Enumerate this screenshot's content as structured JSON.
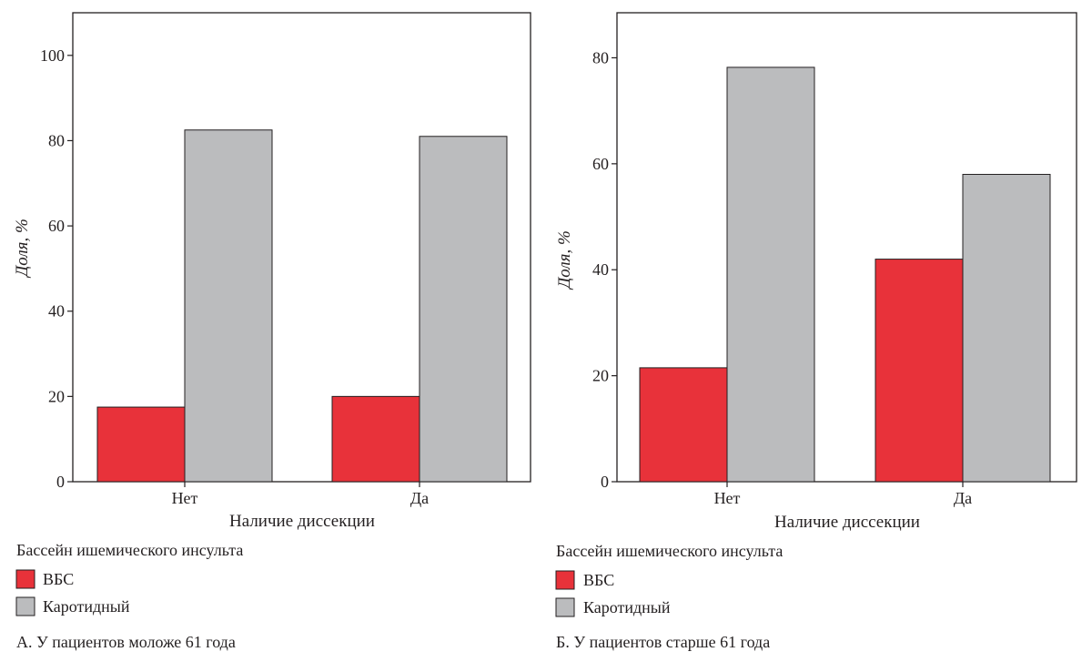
{
  "chart_data": [
    {
      "type": "bar",
      "categories": [
        "Нет",
        "Да"
      ],
      "series": [
        {
          "name": "ВБС",
          "values": [
            17.5,
            20.0
          ]
        },
        {
          "name": "Каротидный",
          "values": [
            82.5,
            81.0
          ]
        }
      ],
      "ylim": [
        0,
        110
      ],
      "yticks": [
        0,
        20,
        40,
        60,
        80,
        100
      ],
      "xlabel": "Наличие диссекции",
      "ylabel": "Доля, %",
      "legend_title": "Бассейн ишемического инсульта",
      "legend_position": "bottom-left",
      "caption": "А. У пациентов моложе 61 года",
      "grid": false
    },
    {
      "type": "bar",
      "categories": [
        "Нет",
        "Да"
      ],
      "series": [
        {
          "name": "ВБС",
          "values": [
            21.5,
            42.0
          ]
        },
        {
          "name": "Каротидный",
          "values": [
            78.2,
            58.0
          ]
        }
      ],
      "ylim": [
        0,
        88.5
      ],
      "yticks": [
        0,
        20,
        40,
        60,
        80
      ],
      "xlabel": "Наличие диссекции",
      "ylabel": "Доля, %",
      "legend_title": "Бассейн ишемического инсульта",
      "legend_position": "bottom-left",
      "caption": "Б. У пациентов старше 61 года",
      "grid": false
    }
  ],
  "colors": {
    "series": [
      "#e8323a",
      "#bbbcbe"
    ],
    "axis": "#231f20",
    "background": "#ffffff"
  }
}
